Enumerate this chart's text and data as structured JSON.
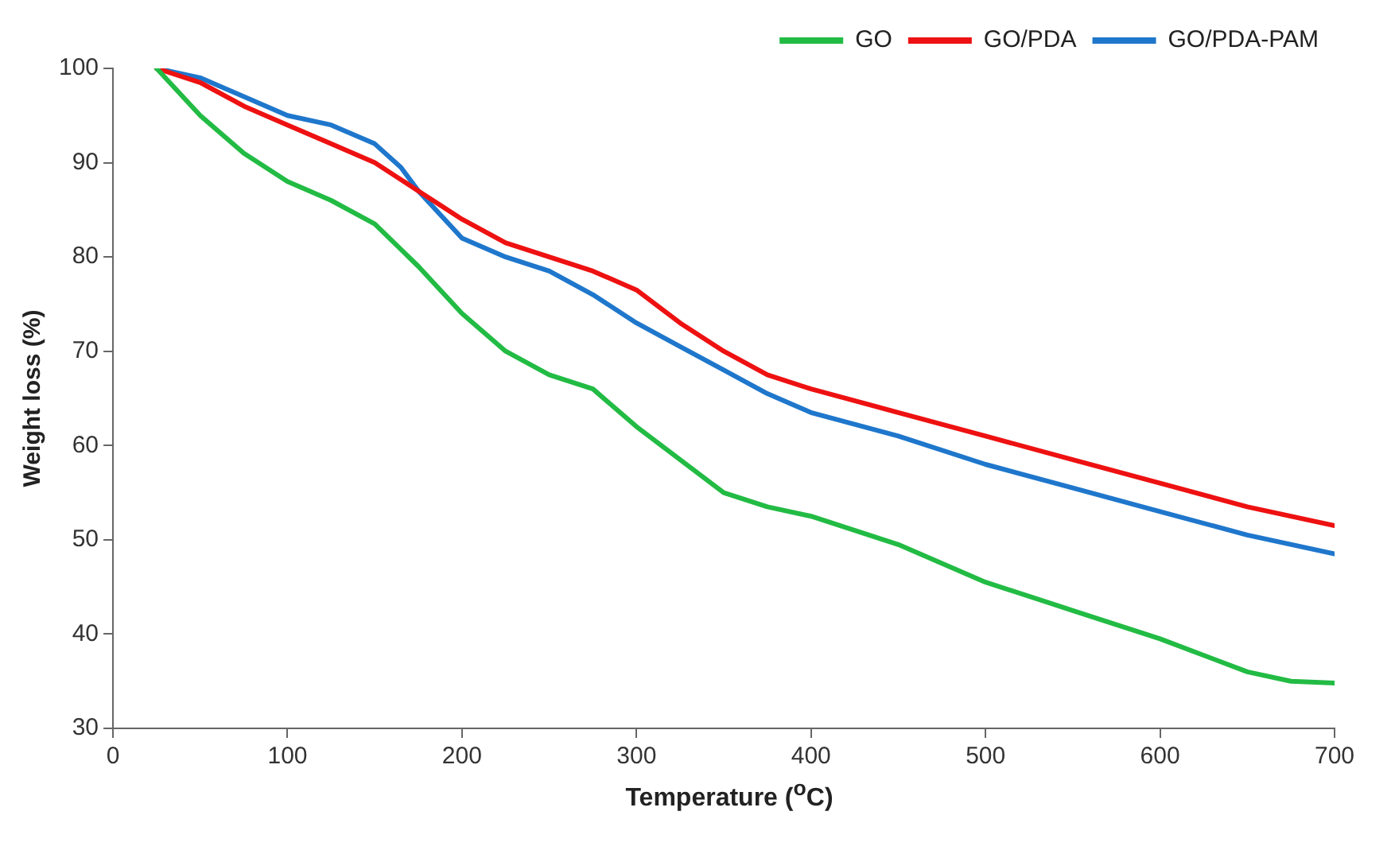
{
  "chart_data": {
    "type": "line",
    "xlabel": "Temperature ($^{o}$C)",
    "ylabel": "Weight loss (%)",
    "xlim": [
      0,
      700
    ],
    "xticks": [
      0,
      100,
      200,
      300,
      400,
      500,
      600,
      700
    ],
    "ylim": [
      30,
      100
    ],
    "yticks": [
      30,
      40,
      50,
      60,
      70,
      80,
      90,
      100
    ],
    "grid": false,
    "legend": "top right",
    "marker": "none",
    "line_style": "solid",
    "series": [
      {
        "name": "GO",
        "color": "#22bb44",
        "x": [
          25,
          50,
          75,
          100,
          125,
          150,
          175,
          200,
          225,
          250,
          275,
          300,
          325,
          350,
          375,
          400,
          450,
          500,
          550,
          600,
          650,
          675,
          700
        ],
        "values": [
          100,
          95,
          91,
          88,
          86,
          83.5,
          79,
          74,
          70,
          67.5,
          66,
          62,
          58.5,
          55,
          53.5,
          52.5,
          49.5,
          45.5,
          42.5,
          39.5,
          36,
          35,
          34.8
        ]
      },
      {
        "name": "GO/PDA",
        "color": "#ee1111",
        "x": [
          25,
          50,
          75,
          100,
          125,
          150,
          175,
          200,
          225,
          250,
          275,
          300,
          325,
          350,
          375,
          400,
          450,
          500,
          550,
          600,
          650,
          700
        ],
        "values": [
          100,
          98.5,
          96,
          94,
          92,
          90,
          87,
          84,
          81.5,
          80,
          78.5,
          76.5,
          73,
          70,
          67.5,
          66,
          63.5,
          61,
          58.5,
          56,
          53.5,
          51.5
        ]
      },
      {
        "name": "GO/PDA-PAM",
        "color": "#1f77cc",
        "x": [
          25,
          50,
          75,
          100,
          125,
          150,
          165,
          175,
          200,
          225,
          250,
          275,
          300,
          325,
          350,
          375,
          400,
          450,
          500,
          550,
          600,
          650,
          700
        ],
        "values": [
          100,
          99,
          97,
          95,
          94,
          92,
          89.5,
          87,
          82,
          80,
          78.5,
          76,
          73,
          70.5,
          68,
          65.5,
          63.5,
          61,
          58,
          55.5,
          53,
          50.5,
          48.5
        ]
      }
    ]
  }
}
